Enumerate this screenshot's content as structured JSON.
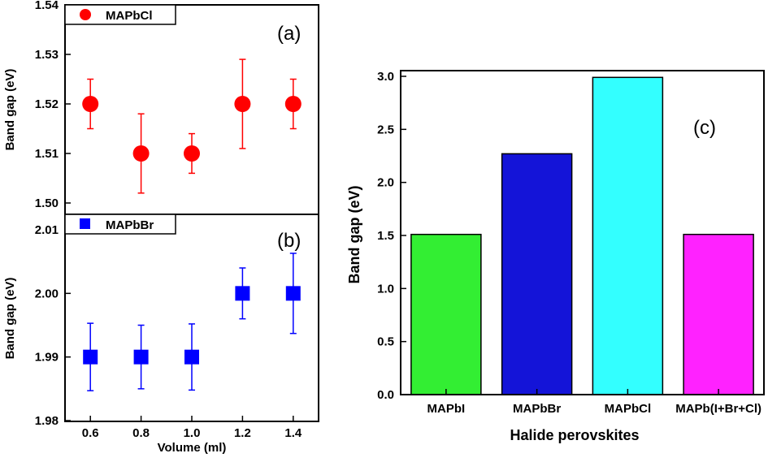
{
  "chart_data": [
    {
      "panel_label": "(a)",
      "type": "scatter",
      "series": [
        {
          "name": "MAPbCl",
          "color": "#ff0000",
          "marker": "circle",
          "x": [
            0.6,
            0.8,
            1.0,
            1.2,
            1.4
          ],
          "values": [
            1.52,
            1.51,
            1.51,
            1.52,
            1.52
          ],
          "error": [
            0.005,
            0.008,
            0.004,
            0.009,
            0.005
          ]
        }
      ],
      "ylabel": "Band gap (eV)",
      "ylim": [
        1.5,
        1.54
      ],
      "yticks": [
        "1.50",
        "1.51",
        "1.52",
        "1.53",
        "1.54"
      ],
      "legend": "top-left"
    },
    {
      "panel_label": "(b)",
      "type": "scatter",
      "series": [
        {
          "name": "MAPbBr",
          "color": "#0000ff",
          "marker": "square",
          "x": [
            0.6,
            0.8,
            1.0,
            1.2,
            1.4
          ],
          "values": [
            1.99,
            1.99,
            1.99,
            2.0,
            2.0
          ],
          "error": [
            0.0053,
            0.005,
            0.0052,
            0.004,
            0.0063
          ]
        }
      ],
      "xlabel": "Volume (ml)",
      "ylabel": "Band gap (eV)",
      "xlim": [
        0.5,
        1.5
      ],
      "ylim": [
        1.98,
        2.01
      ],
      "xticks": [
        "0.6",
        "0.8",
        "1.0",
        "1.2",
        "1.4"
      ],
      "yticks": [
        "1.98",
        "1.99",
        "2.00",
        "2.01"
      ],
      "legend": "top-left"
    },
    {
      "panel_label": "(c)",
      "type": "bar",
      "categories": [
        "MAPbI",
        "MAPbBr",
        "MAPbCl",
        "MAPb(I+Br+Cl)"
      ],
      "values": [
        1.51,
        2.27,
        2.99,
        1.51
      ],
      "colors": [
        "#33ee33",
        "#1414d8",
        "#33ffff",
        "#ff22ff"
      ],
      "xlabel": "Halide perovskites",
      "ylabel": "Band gap (eV)",
      "ylim": [
        0,
        3.1
      ],
      "yticks": [
        "0.0",
        "0.5",
        "1.0",
        "1.5",
        "2.0",
        "2.5",
        "3.0"
      ]
    }
  ]
}
